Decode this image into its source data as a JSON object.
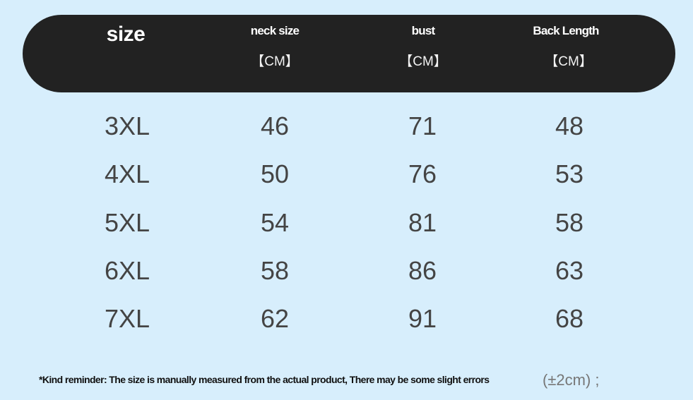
{
  "header": {
    "size": "size",
    "columns": [
      {
        "name": "neck size",
        "unit": "【CM】"
      },
      {
        "name": "bust",
        "unit": "【CM】"
      },
      {
        "name": "Back Length",
        "unit": "【CM】"
      }
    ]
  },
  "rows": [
    {
      "size": "3XL",
      "neck": "46",
      "bust": "71",
      "back": "48"
    },
    {
      "size": "4XL",
      "neck": "50",
      "bust": "76",
      "back": "53"
    },
    {
      "size": "5XL",
      "neck": "54",
      "bust": "81",
      "back": "58"
    },
    {
      "size": "6XL",
      "neck": "58",
      "bust": "86",
      "back": "63"
    },
    {
      "size": "7XL",
      "neck": "62",
      "bust": "91",
      "back": "68"
    }
  ],
  "footer": {
    "note": "*Kind reminder: The size is manually measured from the actual product, There may be some slight errors",
    "tolerance": "(±2cm) ;"
  },
  "colors": {
    "background": "#d7eefc",
    "header": "#222222",
    "text": "#444444"
  }
}
